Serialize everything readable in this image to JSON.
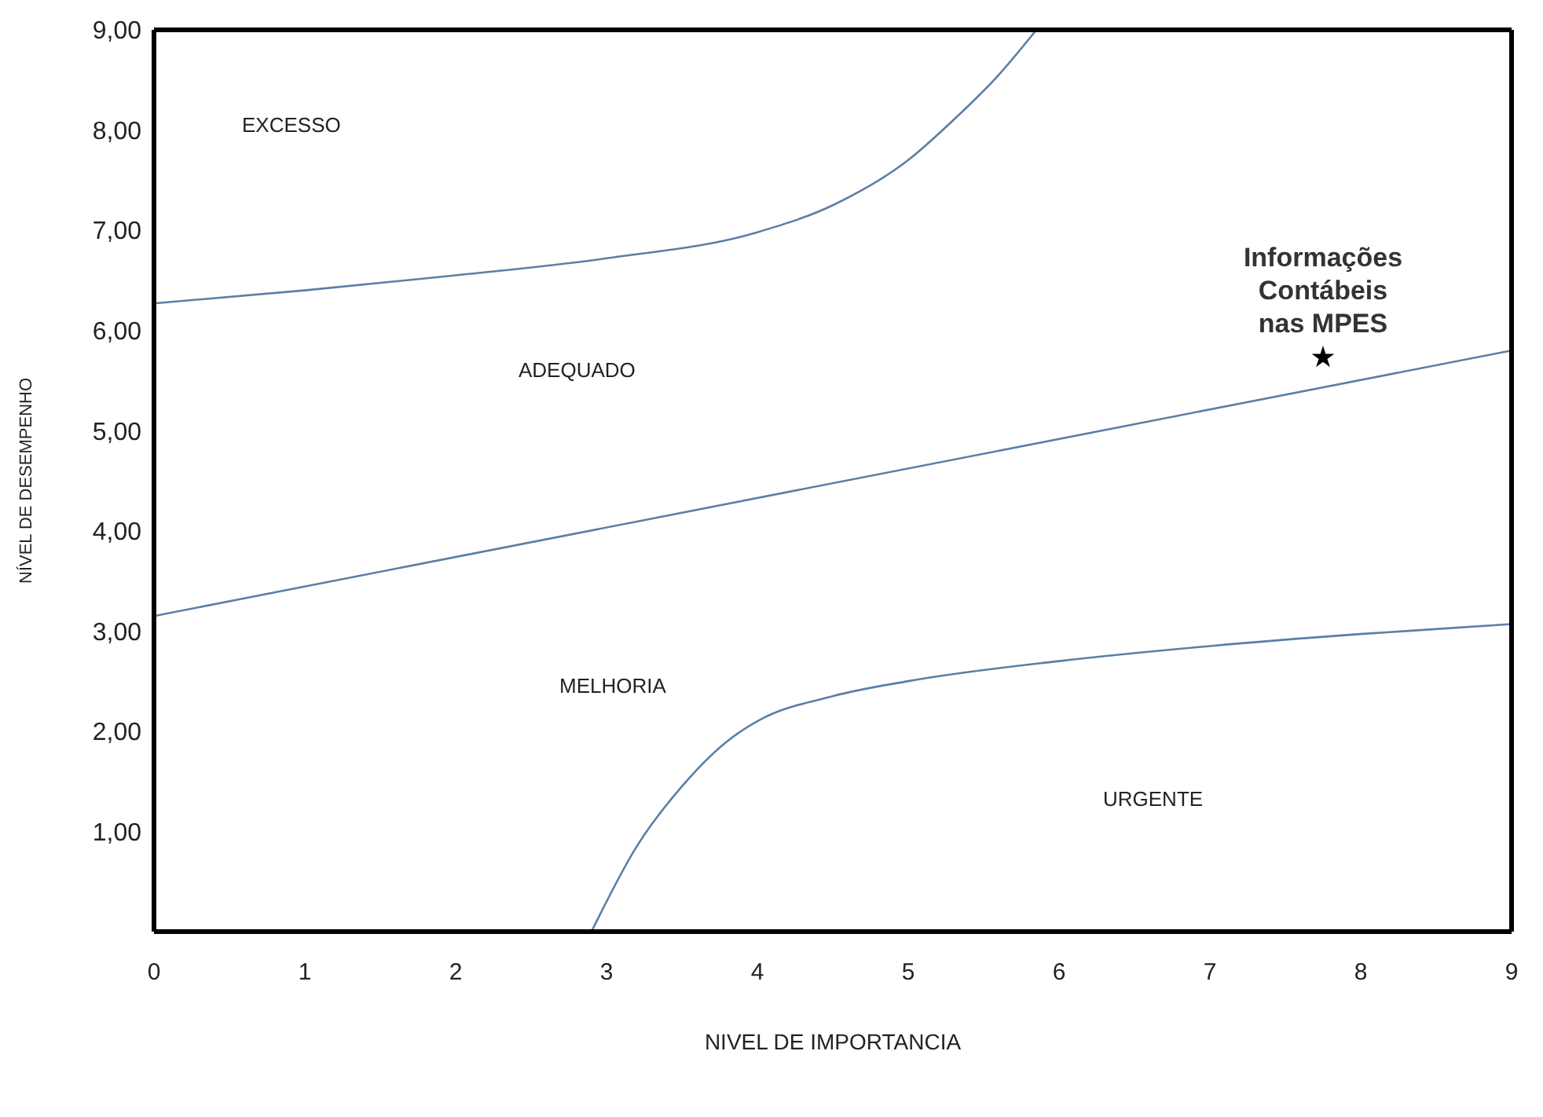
{
  "chart_data": {
    "type": "line",
    "xlabel": "NIVEL DE IMPORTANCIA",
    "ylabel": "NÍVEL DE DESEMPENHO",
    "xlim": [
      0,
      9
    ],
    "xticks": [
      0,
      1,
      2,
      3,
      4,
      5,
      6,
      7,
      8,
      9
    ],
    "ylim": [
      0,
      9
    ],
    "yticks": [
      {
        "value": 1,
        "label": "1,00"
      },
      {
        "value": 2,
        "label": "2,00"
      },
      {
        "value": 3,
        "label": "3,00"
      },
      {
        "value": 4,
        "label": "4,00"
      },
      {
        "value": 5,
        "label": "5,00"
      },
      {
        "value": 6,
        "label": "6,00"
      },
      {
        "value": 7,
        "label": "7,00"
      },
      {
        "value": 8,
        "label": "8,00"
      },
      {
        "value": 9,
        "label": "9,00"
      }
    ],
    "grid": false,
    "marker": "none",
    "line_style": "solid",
    "series": [
      {
        "color": "#5b7fa6",
        "x": [
          0,
          1,
          2,
          3,
          4,
          4.5,
          5,
          5.3,
          5.6,
          5.85
        ],
        "values": [
          6.27,
          6.4,
          6.55,
          6.72,
          6.98,
          7.25,
          7.7,
          8.1,
          8.55,
          9
        ]
      },
      {
        "color": "#5b7fa6",
        "x": [
          0,
          9
        ],
        "values": [
          3.15,
          5.8
        ]
      },
      {
        "color": "#5b7fa6",
        "x": [
          2.9,
          3.2,
          3.5,
          3.8,
          4,
          4.5,
          5,
          6,
          7,
          8,
          9
        ],
        "values": [
          0,
          0.85,
          1.45,
          1.9,
          2.1,
          2.35,
          2.5,
          2.7,
          2.85,
          2.97,
          3.07
        ]
      },
      {
        "type": "scatter",
        "color": "#000000",
        "marker": "star",
        "x": [
          7.75
        ],
        "values": [
          5.73
        ]
      }
    ],
    "annotations": [
      {
        "text": "Informações Contábeis nas MPES",
        "x": 7.75,
        "y": 5.73
      },
      "EXCESSO",
      "ADEQUADO",
      "MELHORIA",
      "URGENTE"
    ]
  }
}
